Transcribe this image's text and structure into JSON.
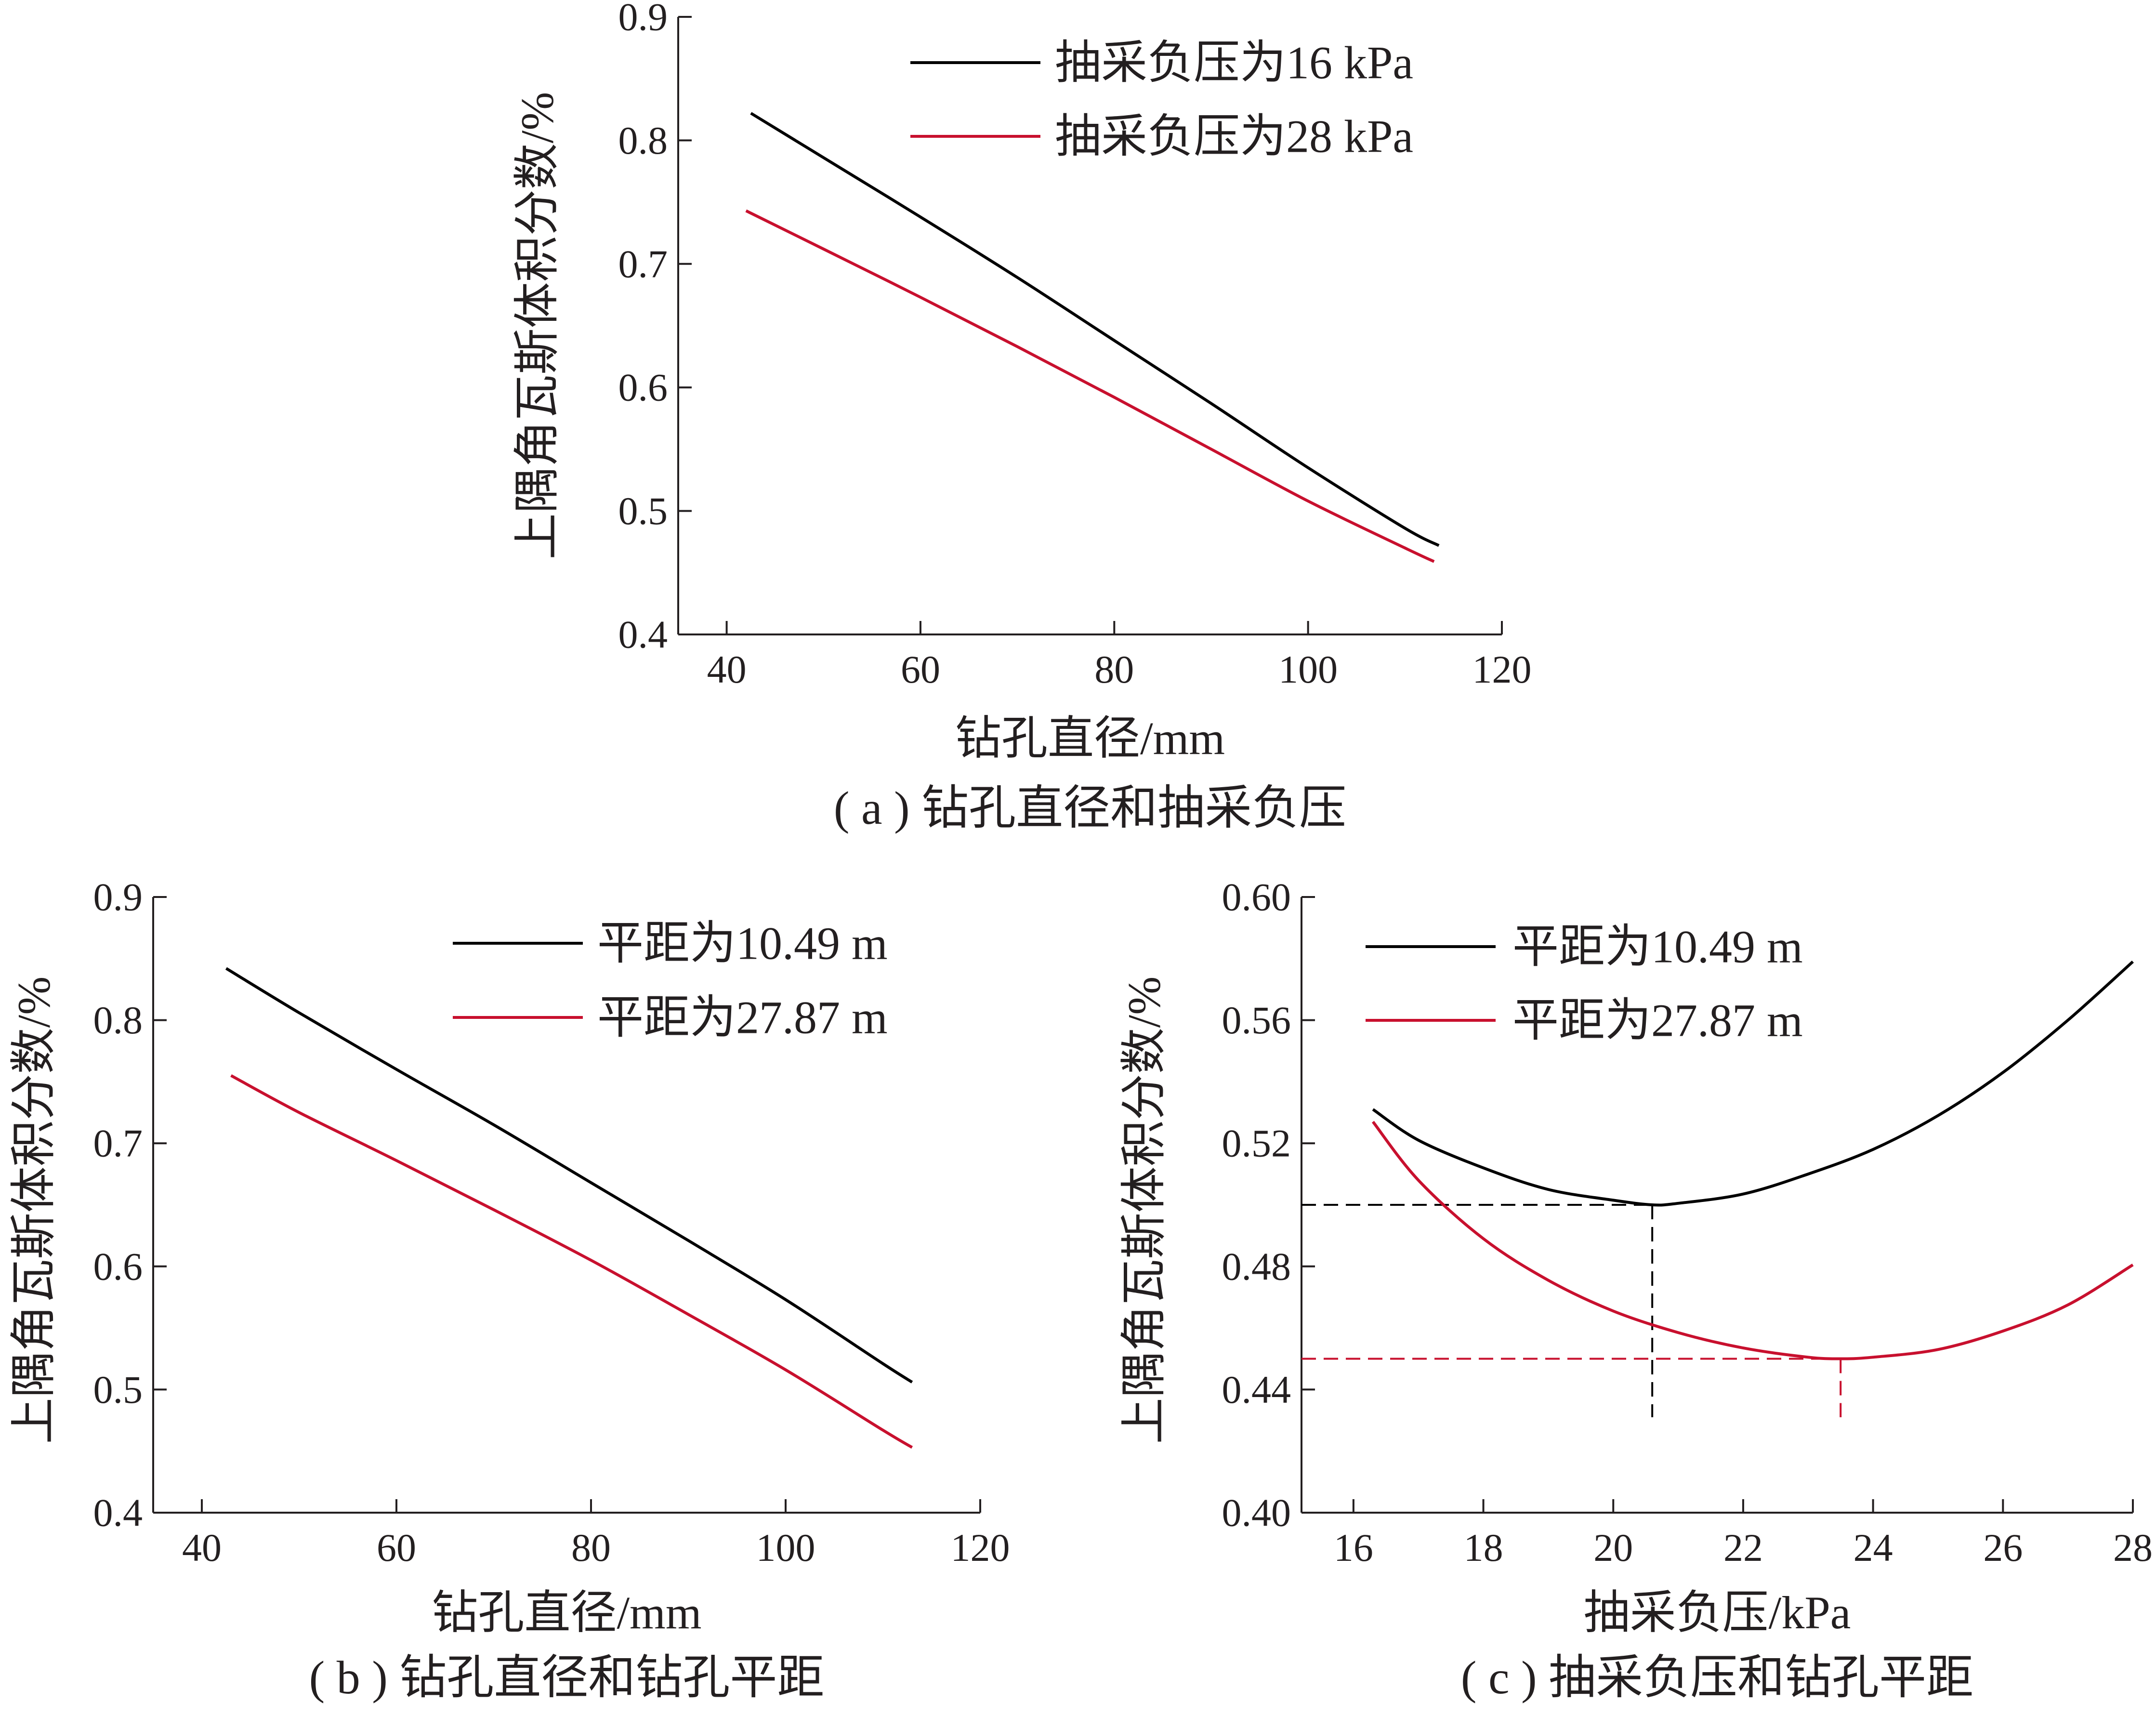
{
  "chart_data": [
    {
      "id": "a",
      "type": "line",
      "caption": "( a ) 钻孔直径和抽采负压",
      "xlabel": "钻孔直径/mm",
      "ylabel": "上隅角瓦斯体积分数/%",
      "xlim": [
        35,
        120
      ],
      "ylim": [
        0.4,
        0.9
      ],
      "xticks": [
        40,
        60,
        80,
        100,
        120
      ],
      "yticks": [
        0.4,
        0.5,
        0.6,
        0.7,
        0.8,
        0.9
      ],
      "ytick_decimals": 1,
      "grid": false,
      "legend_position": "top-right",
      "series": [
        {
          "name": "抽采负压为16 kPa",
          "color": "#000000",
          "x": [
            42.5,
            50,
            60,
            70,
            80,
            90,
            100,
            110,
            113.5
          ],
          "y": [
            0.822,
            0.786,
            0.738,
            0.689,
            0.638,
            0.587,
            0.535,
            0.486,
            0.472
          ]
        },
        {
          "name": "抽采负压为28 kPa",
          "color": "#c8102e",
          "x": [
            42,
            50,
            60,
            70,
            80,
            90,
            100,
            110,
            113
          ],
          "y": [
            0.743,
            0.712,
            0.673,
            0.633,
            0.592,
            0.55,
            0.508,
            0.47,
            0.459
          ]
        }
      ]
    },
    {
      "id": "b",
      "type": "line",
      "caption": "( b ) 钻孔直径和钻孔平距",
      "xlabel": "钻孔直径/mm",
      "ylabel": "上隅角瓦斯体积分数/%",
      "xlim": [
        35,
        120
      ],
      "ylim": [
        0.4,
        0.9
      ],
      "xticks": [
        40,
        60,
        80,
        100,
        120
      ],
      "yticks": [
        0.4,
        0.5,
        0.6,
        0.7,
        0.8,
        0.9
      ],
      "ytick_decimals": 1,
      "grid": false,
      "legend_position": "top-right",
      "series": [
        {
          "name": "平距为10.49 m",
          "color": "#000000",
          "x": [
            42.5,
            50,
            60,
            70,
            80,
            90,
            100,
            110,
            113
          ],
          "y": [
            0.842,
            0.806,
            0.76,
            0.715,
            0.668,
            0.621,
            0.573,
            0.521,
            0.506
          ]
        },
        {
          "name": "平距为27.87 m",
          "color": "#c8102e",
          "x": [
            43,
            50,
            60,
            70,
            80,
            90,
            100,
            110,
            113
          ],
          "y": [
            0.755,
            0.725,
            0.686,
            0.646,
            0.605,
            0.561,
            0.516,
            0.467,
            0.453
          ]
        }
      ]
    },
    {
      "id": "c",
      "type": "line",
      "caption": "( c ) 抽采负压和钻孔平距",
      "xlabel": "抽采负压/kPa",
      "ylabel": "上隅角瓦斯体积分数/%",
      "xlim": [
        15.2,
        28
      ],
      "ylim": [
        0.4,
        0.6
      ],
      "xticks": [
        16,
        18,
        20,
        22,
        24,
        26,
        28
      ],
      "yticks": [
        0.4,
        0.44,
        0.48,
        0.52,
        0.56,
        0.6
      ],
      "ytick_decimals": 2,
      "grid": false,
      "legend_position": "top-left",
      "series": [
        {
          "name": "平距为10.49 m",
          "color": "#000000",
          "x": [
            16.3,
            17,
            18,
            19,
            20,
            20.6,
            21,
            22,
            23,
            24,
            25,
            26,
            27,
            28
          ],
          "y": [
            0.531,
            0.521,
            0.512,
            0.505,
            0.5015,
            0.5,
            0.5005,
            0.5035,
            0.51,
            0.518,
            0.529,
            0.543,
            0.56,
            0.579
          ]
        },
        {
          "name": "平距为27.87 m",
          "color": "#c8102e",
          "x": [
            16.3,
            17,
            18,
            19,
            20,
            21,
            22,
            23,
            23.5,
            24,
            25,
            26,
            27,
            28
          ],
          "y": [
            0.527,
            0.508,
            0.489,
            0.4755,
            0.4655,
            0.4585,
            0.4535,
            0.4505,
            0.45,
            0.4505,
            0.453,
            0.459,
            0.4675,
            0.4805
          ]
        }
      ],
      "reference_lines": [
        {
          "color": "#000000",
          "x": 20.6,
          "y": 0.5,
          "y_bottom": 0.431
        },
        {
          "color": "#c8102e",
          "x": 23.5,
          "y": 0.45,
          "y_bottom": 0.431
        }
      ]
    }
  ]
}
